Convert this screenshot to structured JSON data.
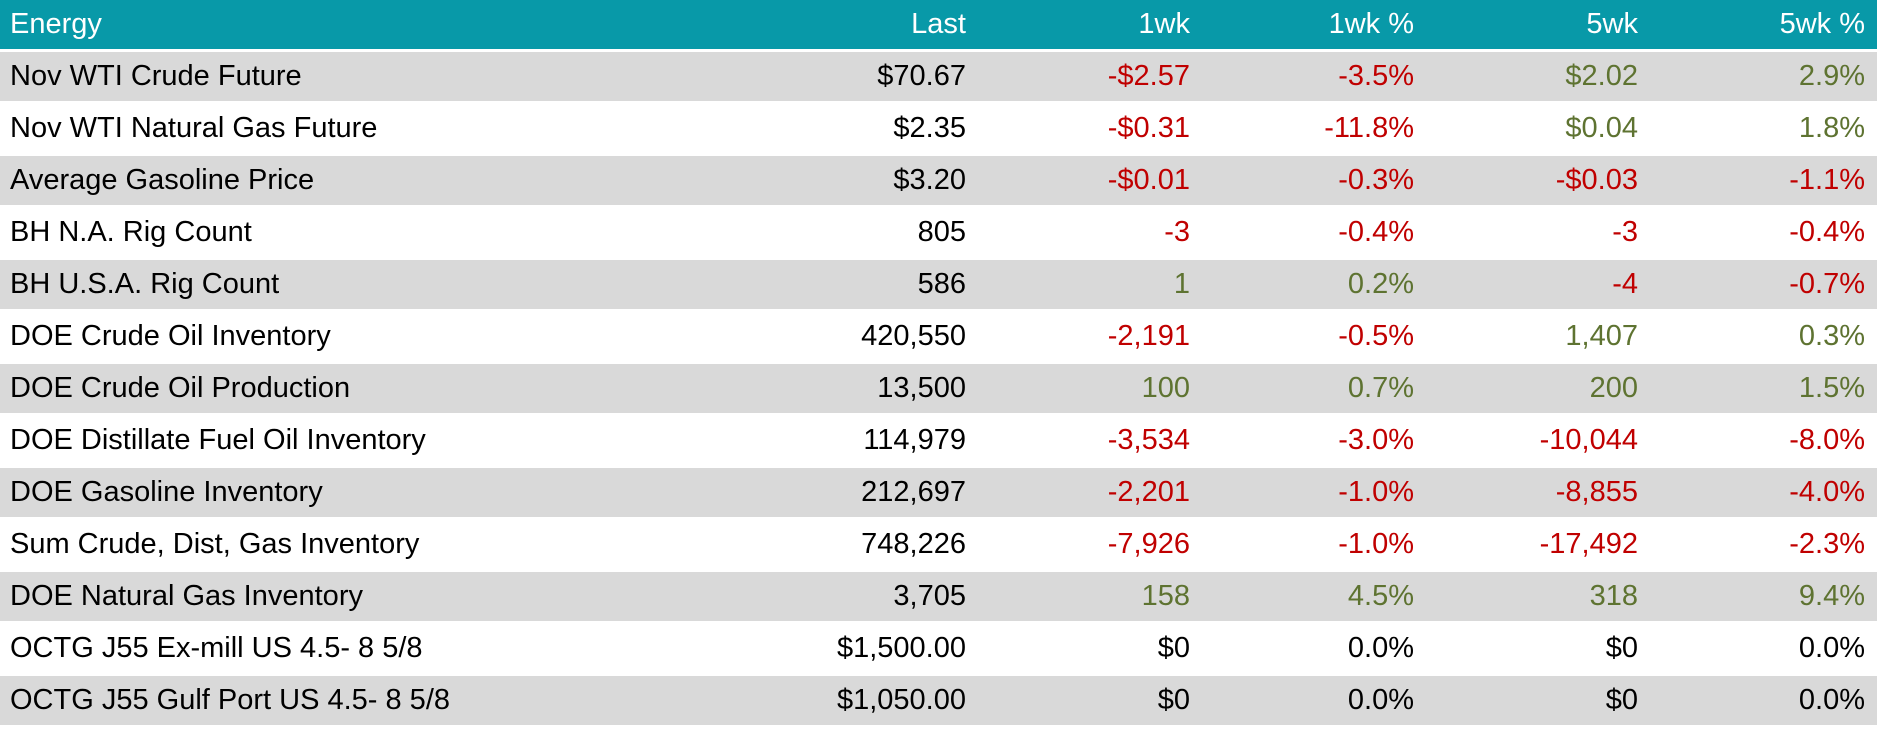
{
  "colors": {
    "header_bg": "#0899A8",
    "header_text": "#FFFFFF",
    "row_alt_bg": "#D9D9D9",
    "row_bg": "#FFFFFF",
    "negative": "#C00000",
    "positive": "#5E7331",
    "neutral": "#000000"
  },
  "table": {
    "columns": [
      {
        "label": "Energy",
        "align": "left"
      },
      {
        "label": "Last",
        "align": "right"
      },
      {
        "label": "1wk",
        "align": "right"
      },
      {
        "label": "1wk %",
        "align": "right"
      },
      {
        "label": "5wk",
        "align": "right"
      },
      {
        "label": "5wk %",
        "align": "right"
      }
    ],
    "rows": [
      {
        "cells": [
          {
            "text": "Nov WTI Crude Future",
            "tone": "label"
          },
          {
            "text": "$70.67",
            "tone": "neutral"
          },
          {
            "text": "-$2.57",
            "tone": "neg"
          },
          {
            "text": "-3.5%",
            "tone": "neg"
          },
          {
            "text": "$2.02",
            "tone": "pos"
          },
          {
            "text": "2.9%",
            "tone": "pos"
          }
        ]
      },
      {
        "cells": [
          {
            "text": "Nov WTI Natural Gas Future",
            "tone": "label"
          },
          {
            "text": "$2.35",
            "tone": "neutral"
          },
          {
            "text": "-$0.31",
            "tone": "neg"
          },
          {
            "text": "-11.8%",
            "tone": "neg"
          },
          {
            "text": "$0.04",
            "tone": "pos"
          },
          {
            "text": "1.8%",
            "tone": "pos"
          }
        ]
      },
      {
        "cells": [
          {
            "text": "Average Gasoline Price",
            "tone": "label"
          },
          {
            "text": "$3.20",
            "tone": "neutral"
          },
          {
            "text": "-$0.01",
            "tone": "neg"
          },
          {
            "text": "-0.3%",
            "tone": "neg"
          },
          {
            "text": "-$0.03",
            "tone": "neg"
          },
          {
            "text": "-1.1%",
            "tone": "neg"
          }
        ]
      },
      {
        "cells": [
          {
            "text": "BH N.A. Rig Count",
            "tone": "label"
          },
          {
            "text": "805",
            "tone": "neutral"
          },
          {
            "text": "-3",
            "tone": "neg"
          },
          {
            "text": "-0.4%",
            "tone": "neg"
          },
          {
            "text": "-3",
            "tone": "neg"
          },
          {
            "text": "-0.4%",
            "tone": "neg"
          }
        ]
      },
      {
        "cells": [
          {
            "text": "BH U.S.A. Rig Count",
            "tone": "label"
          },
          {
            "text": "586",
            "tone": "neutral"
          },
          {
            "text": "1",
            "tone": "pos"
          },
          {
            "text": "0.2%",
            "tone": "pos"
          },
          {
            "text": "-4",
            "tone": "neg"
          },
          {
            "text": "-0.7%",
            "tone": "neg"
          }
        ]
      },
      {
        "cells": [
          {
            "text": "DOE Crude Oil Inventory",
            "tone": "label"
          },
          {
            "text": "420,550",
            "tone": "neutral"
          },
          {
            "text": "-2,191",
            "tone": "neg"
          },
          {
            "text": "-0.5%",
            "tone": "neg"
          },
          {
            "text": "1,407",
            "tone": "pos"
          },
          {
            "text": "0.3%",
            "tone": "pos"
          }
        ]
      },
      {
        "cells": [
          {
            "text": "DOE Crude Oil Production",
            "tone": "label"
          },
          {
            "text": "13,500",
            "tone": "neutral"
          },
          {
            "text": "100",
            "tone": "pos"
          },
          {
            "text": "0.7%",
            "tone": "pos"
          },
          {
            "text": "200",
            "tone": "pos"
          },
          {
            "text": "1.5%",
            "tone": "pos"
          }
        ]
      },
      {
        "cells": [
          {
            "text": "DOE Distillate Fuel Oil Inventory",
            "tone": "label"
          },
          {
            "text": "114,979",
            "tone": "neutral"
          },
          {
            "text": "-3,534",
            "tone": "neg"
          },
          {
            "text": "-3.0%",
            "tone": "neg"
          },
          {
            "text": "-10,044",
            "tone": "neg"
          },
          {
            "text": "-8.0%",
            "tone": "neg"
          }
        ]
      },
      {
        "cells": [
          {
            "text": "DOE Gasoline Inventory",
            "tone": "label"
          },
          {
            "text": "212,697",
            "tone": "neutral"
          },
          {
            "text": "-2,201",
            "tone": "neg"
          },
          {
            "text": "-1.0%",
            "tone": "neg"
          },
          {
            "text": "-8,855",
            "tone": "neg"
          },
          {
            "text": "-4.0%",
            "tone": "neg"
          }
        ]
      },
      {
        "cells": [
          {
            "text": "Sum Crude, Dist, Gas Inventory",
            "tone": "label"
          },
          {
            "text": "748,226",
            "tone": "neutral"
          },
          {
            "text": "-7,926",
            "tone": "neg"
          },
          {
            "text": "-1.0%",
            "tone": "neg"
          },
          {
            "text": "-17,492",
            "tone": "neg"
          },
          {
            "text": "-2.3%",
            "tone": "neg"
          }
        ]
      },
      {
        "cells": [
          {
            "text": "DOE Natural Gas Inventory",
            "tone": "label"
          },
          {
            "text": "3,705",
            "tone": "neutral"
          },
          {
            "text": "158",
            "tone": "pos"
          },
          {
            "text": "4.5%",
            "tone": "pos"
          },
          {
            "text": "318",
            "tone": "pos"
          },
          {
            "text": "9.4%",
            "tone": "pos"
          }
        ]
      },
      {
        "cells": [
          {
            "text": "OCTG J55 Ex-mill US 4.5- 8 5/8",
            "tone": "label"
          },
          {
            "text": "$1,500.00",
            "tone": "neutral"
          },
          {
            "text": "$0",
            "tone": "neutral"
          },
          {
            "text": "0.0%",
            "tone": "neutral"
          },
          {
            "text": "$0",
            "tone": "neutral"
          },
          {
            "text": "0.0%",
            "tone": "neutral"
          }
        ]
      },
      {
        "cells": [
          {
            "text": "OCTG J55 Gulf Port US 4.5- 8 5/8",
            "tone": "label"
          },
          {
            "text": "$1,050.00",
            "tone": "neutral"
          },
          {
            "text": "$0",
            "tone": "neutral"
          },
          {
            "text": "0.0%",
            "tone": "neutral"
          },
          {
            "text": "$0",
            "tone": "neutral"
          },
          {
            "text": "0.0%",
            "tone": "neutral"
          }
        ]
      }
    ]
  },
  "chart_data": {
    "type": "table",
    "title": "Energy",
    "columns": [
      "Energy",
      "Last",
      "1wk",
      "1wk %",
      "5wk",
      "5wk %"
    ],
    "rows": [
      [
        "Nov WTI Crude Future",
        "$70.67",
        "-$2.57",
        "-3.5%",
        "$2.02",
        "2.9%"
      ],
      [
        "Nov WTI Natural Gas Future",
        "$2.35",
        "-$0.31",
        "-11.8%",
        "$0.04",
        "1.8%"
      ],
      [
        "Average Gasoline Price",
        "$3.20",
        "-$0.01",
        "-0.3%",
        "-$0.03",
        "-1.1%"
      ],
      [
        "BH N.A. Rig Count",
        "805",
        "-3",
        "-0.4%",
        "-3",
        "-0.4%"
      ],
      [
        "BH U.S.A. Rig Count",
        "586",
        "1",
        "0.2%",
        "-4",
        "-0.7%"
      ],
      [
        "DOE Crude Oil Inventory",
        "420,550",
        "-2,191",
        "-0.5%",
        "1,407",
        "0.3%"
      ],
      [
        "DOE Crude Oil Production",
        "13,500",
        "100",
        "0.7%",
        "200",
        "1.5%"
      ],
      [
        "DOE Distillate Fuel Oil Inventory",
        "114,979",
        "-3,534",
        "-3.0%",
        "-10,044",
        "-8.0%"
      ],
      [
        "DOE Gasoline Inventory",
        "212,697",
        "-2,201",
        "-1.0%",
        "-8,855",
        "-4.0%"
      ],
      [
        "Sum Crude, Dist, Gas Inventory",
        "748,226",
        "-7,926",
        "-1.0%",
        "-17,492",
        "-2.3%"
      ],
      [
        "DOE Natural Gas Inventory",
        "3,705",
        "158",
        "4.5%",
        "318",
        "9.4%"
      ],
      [
        "OCTG J55 Ex-mill US 4.5- 8 5/8",
        "$1,500.00",
        "$0",
        "0.0%",
        "$0",
        "0.0%"
      ],
      [
        "OCTG J55 Gulf Port US 4.5- 8 5/8",
        "$1,050.00",
        "$0",
        "0.0%",
        "$0",
        "0.0%"
      ]
    ],
    "legend_position": "none",
    "grid": false,
    "notes": "Financial summary table; negative changes in red, positive in olive green, zero/none in black."
  }
}
